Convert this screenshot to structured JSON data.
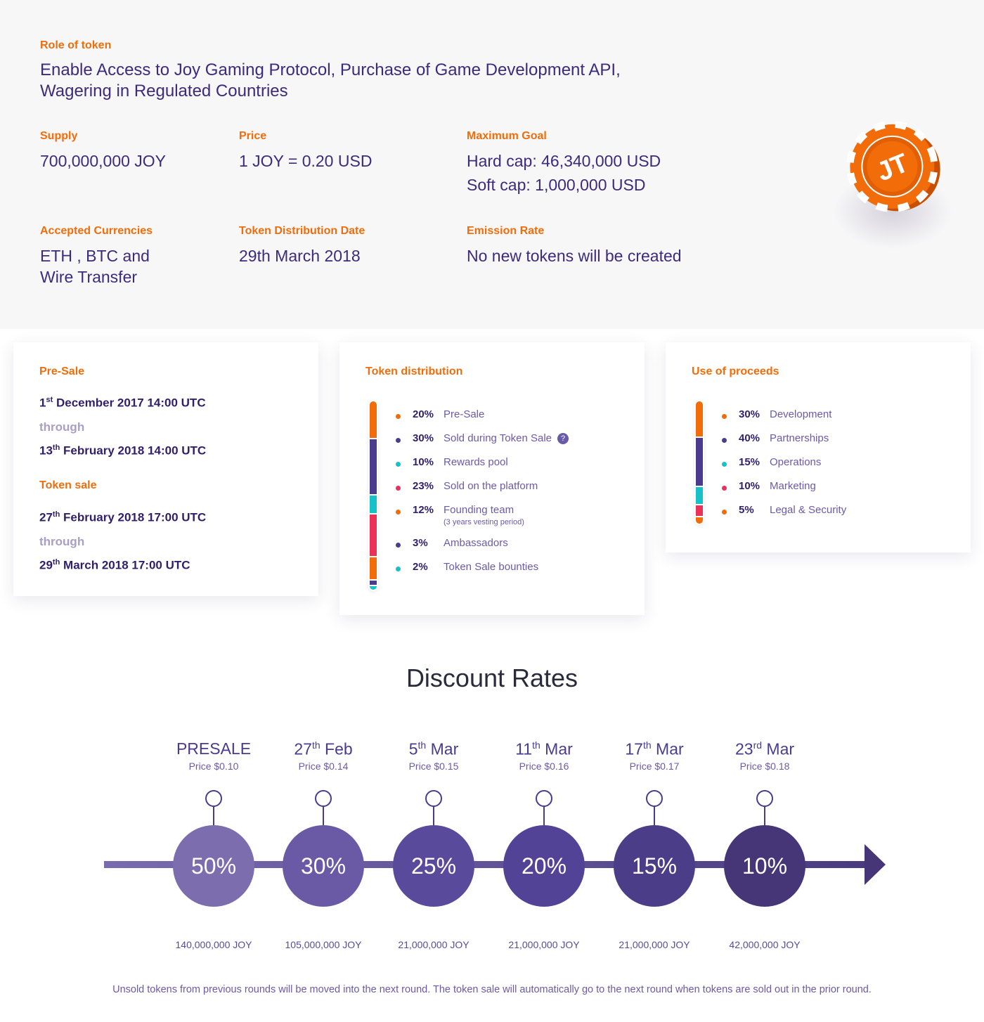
{
  "info": {
    "role_label": "Role of token",
    "role_line1": "Enable Access to Joy Gaming Protocol, Purchase of Game Development API,",
    "role_line2": "Wagering in Regulated Countries",
    "supply_label": "Supply",
    "supply_value": "700,000,000 JOY",
    "price_label": "Price",
    "price_value": "1 JOY = 0.20 USD",
    "goal_label": "Maximum Goal",
    "goal_hard": "Hard cap: 46,340,000 USD",
    "goal_soft": "Soft cap: 1,000,000 USD",
    "currencies_label": "Accepted Currencies",
    "currencies_line1": "ETH , BTC and",
    "currencies_line2": "Wire Transfer",
    "dist_date_label": "Token Distribution Date",
    "dist_date_value": "29th March 2018",
    "emission_label": "Emission Rate",
    "emission_value": "No new tokens will be created",
    "chip_text": "JT"
  },
  "sale_card": {
    "presale_title": "Pre-Sale",
    "presale_start": {
      "day": "1",
      "suffix": "st",
      "rest": " December 2017 14:00 UTC"
    },
    "through": "through",
    "presale_end": {
      "day": "13",
      "suffix": "th",
      "rest": " February 2018 14:00 UTC"
    },
    "tokensale_title": "Token sale",
    "tokensale_start": {
      "day": "27",
      "suffix": "th",
      "rest": " February 2018 17:00 UTC"
    },
    "tokensale_end": {
      "day": "29",
      "suffix": "th",
      "rest": " March 2018 17:00 UTC"
    }
  },
  "distribution": {
    "title": "Token distribution",
    "items": [
      {
        "pct": "20%",
        "name": "Pre-Sale",
        "color": "#f26c0a",
        "value": 20
      },
      {
        "pct": "30%",
        "name": "Sold during Token Sale",
        "color": "#4a3b8f",
        "value": 30,
        "help": "?"
      },
      {
        "pct": "10%",
        "name": "Rewards pool",
        "color": "#17c1c9",
        "value": 10
      },
      {
        "pct": "23%",
        "name": "Sold on the platform",
        "color": "#ec3159",
        "value": 23
      },
      {
        "pct": "12%",
        "name": "Founding team",
        "note": "(3 years vesting period)",
        "color": "#f26c0a",
        "value": 12
      },
      {
        "pct": "3%",
        "name": "Ambassadors",
        "color": "#4a3b8f",
        "value": 3
      },
      {
        "pct": "2%",
        "name": "Token Sale bounties",
        "color": "#17c1c9",
        "value": 2
      }
    ]
  },
  "proceeds": {
    "title": "Use of proceeds",
    "items": [
      {
        "pct": "30%",
        "name": "Development",
        "color": "#f26c0a",
        "value": 30
      },
      {
        "pct": "40%",
        "name": "Partnerships",
        "color": "#4a3b8f",
        "value": 40
      },
      {
        "pct": "15%",
        "name": "Operations",
        "color": "#17c1c9",
        "value": 15
      },
      {
        "pct": "10%",
        "name": "Marketing",
        "color": "#ec3159",
        "value": 10
      },
      {
        "pct": "5%",
        "name": "Legal & Security",
        "color": "#f26c0a",
        "value": 5
      }
    ]
  },
  "discount": {
    "title": "Discount Rates",
    "stages": [
      {
        "main": "PRESALE",
        "sup": "",
        "month": "",
        "price": "Price $0.10",
        "discount": "50%",
        "amount": "140,000,000 JOY",
        "color": "#7b6dae"
      },
      {
        "main": "27",
        "sup": "th",
        "month": " Feb",
        "price": "Price $0.14",
        "discount": "30%",
        "amount": "105,000,000 JOY",
        "color": "#6a5aa6"
      },
      {
        "main": "5",
        "sup": "th",
        "month": " Mar",
        "price": "Price $0.15",
        "discount": "25%",
        "amount": "21,000,000 JOY",
        "color": "#5a4a9c"
      },
      {
        "main": "11",
        "sup": "th",
        "month": " Mar",
        "price": "Price $0.16",
        "discount": "20%",
        "amount": "21,000,000 JOY",
        "color": "#534396"
      },
      {
        "main": "17",
        "sup": "th",
        "month": " Mar",
        "price": "Price $0.17",
        "discount": "15%",
        "amount": "21,000,000 JOY",
        "color": "#4c3d88"
      },
      {
        "main": "23",
        "sup": "rd",
        "month": " Mar",
        "price": "Price $0.18",
        "discount": "10%",
        "amount": "42,000,000 JOY",
        "color": "#463577"
      }
    ],
    "footnote": "Unsold tokens from previous rounds will be moved into the next round. The token sale will automatically go to the next round when tokens are sold out in the prior round."
  }
}
